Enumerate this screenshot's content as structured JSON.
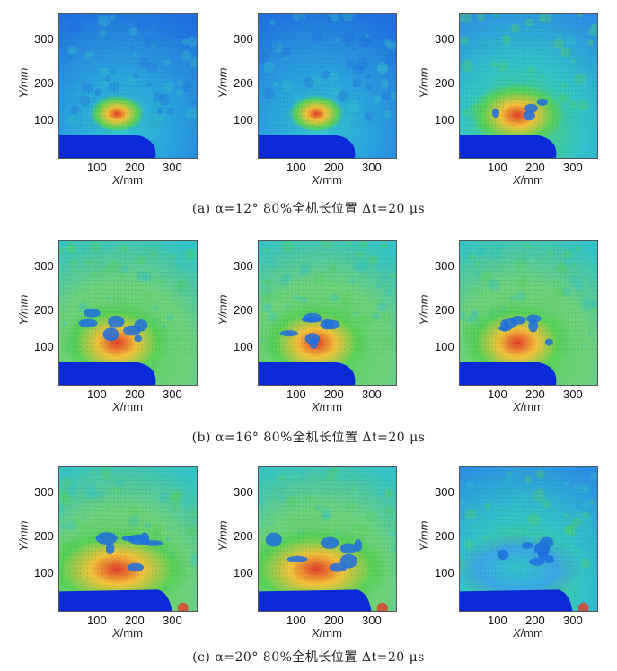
{
  "axis": {
    "y_var": "Y",
    "x_var": "X",
    "unit": "/mm",
    "y_ticks": [
      "300",
      "200",
      "100"
    ],
    "x_ticks_row_ab": [
      "100",
      "200",
      "300"
    ],
    "x_ticks_row_c": [
      "100",
      "200",
      "300"
    ]
  },
  "captions": [
    "(a) α=12° 80%全机长位置 Δt=20 μs",
    "(b) α=16° 80%全机长位置 Δt=20 μs",
    "(c) α=20° 80%全机长位置 Δt=20 μs"
  ],
  "colors": {
    "field_low": "#1f6fe0",
    "field_mid": "#33c3c8",
    "field_green": "#57d15a",
    "field_high": "#f2c23a",
    "field_peak": "#e23b2a",
    "wing": "#0a2ad8"
  },
  "rows": [
    {
      "panels": [
        {
          "id": "a1",
          "background": "blue",
          "vortex": "small"
        },
        {
          "id": "a2",
          "background": "blue",
          "vortex": "small"
        },
        {
          "id": "a3",
          "background": "cyan",
          "vortex": "medium"
        }
      ]
    },
    {
      "panels": [
        {
          "id": "b1",
          "background": "green",
          "vortex": "large"
        },
        {
          "id": "b2",
          "background": "green",
          "vortex": "large"
        },
        {
          "id": "b3",
          "background": "green",
          "vortex": "large"
        }
      ]
    },
    {
      "panels": [
        {
          "id": "c1",
          "background": "green",
          "vortex": "burst"
        },
        {
          "id": "c2",
          "background": "green",
          "vortex": "burst"
        },
        {
          "id": "c3",
          "background": "cyan",
          "vortex": "dissipated"
        }
      ]
    }
  ]
}
